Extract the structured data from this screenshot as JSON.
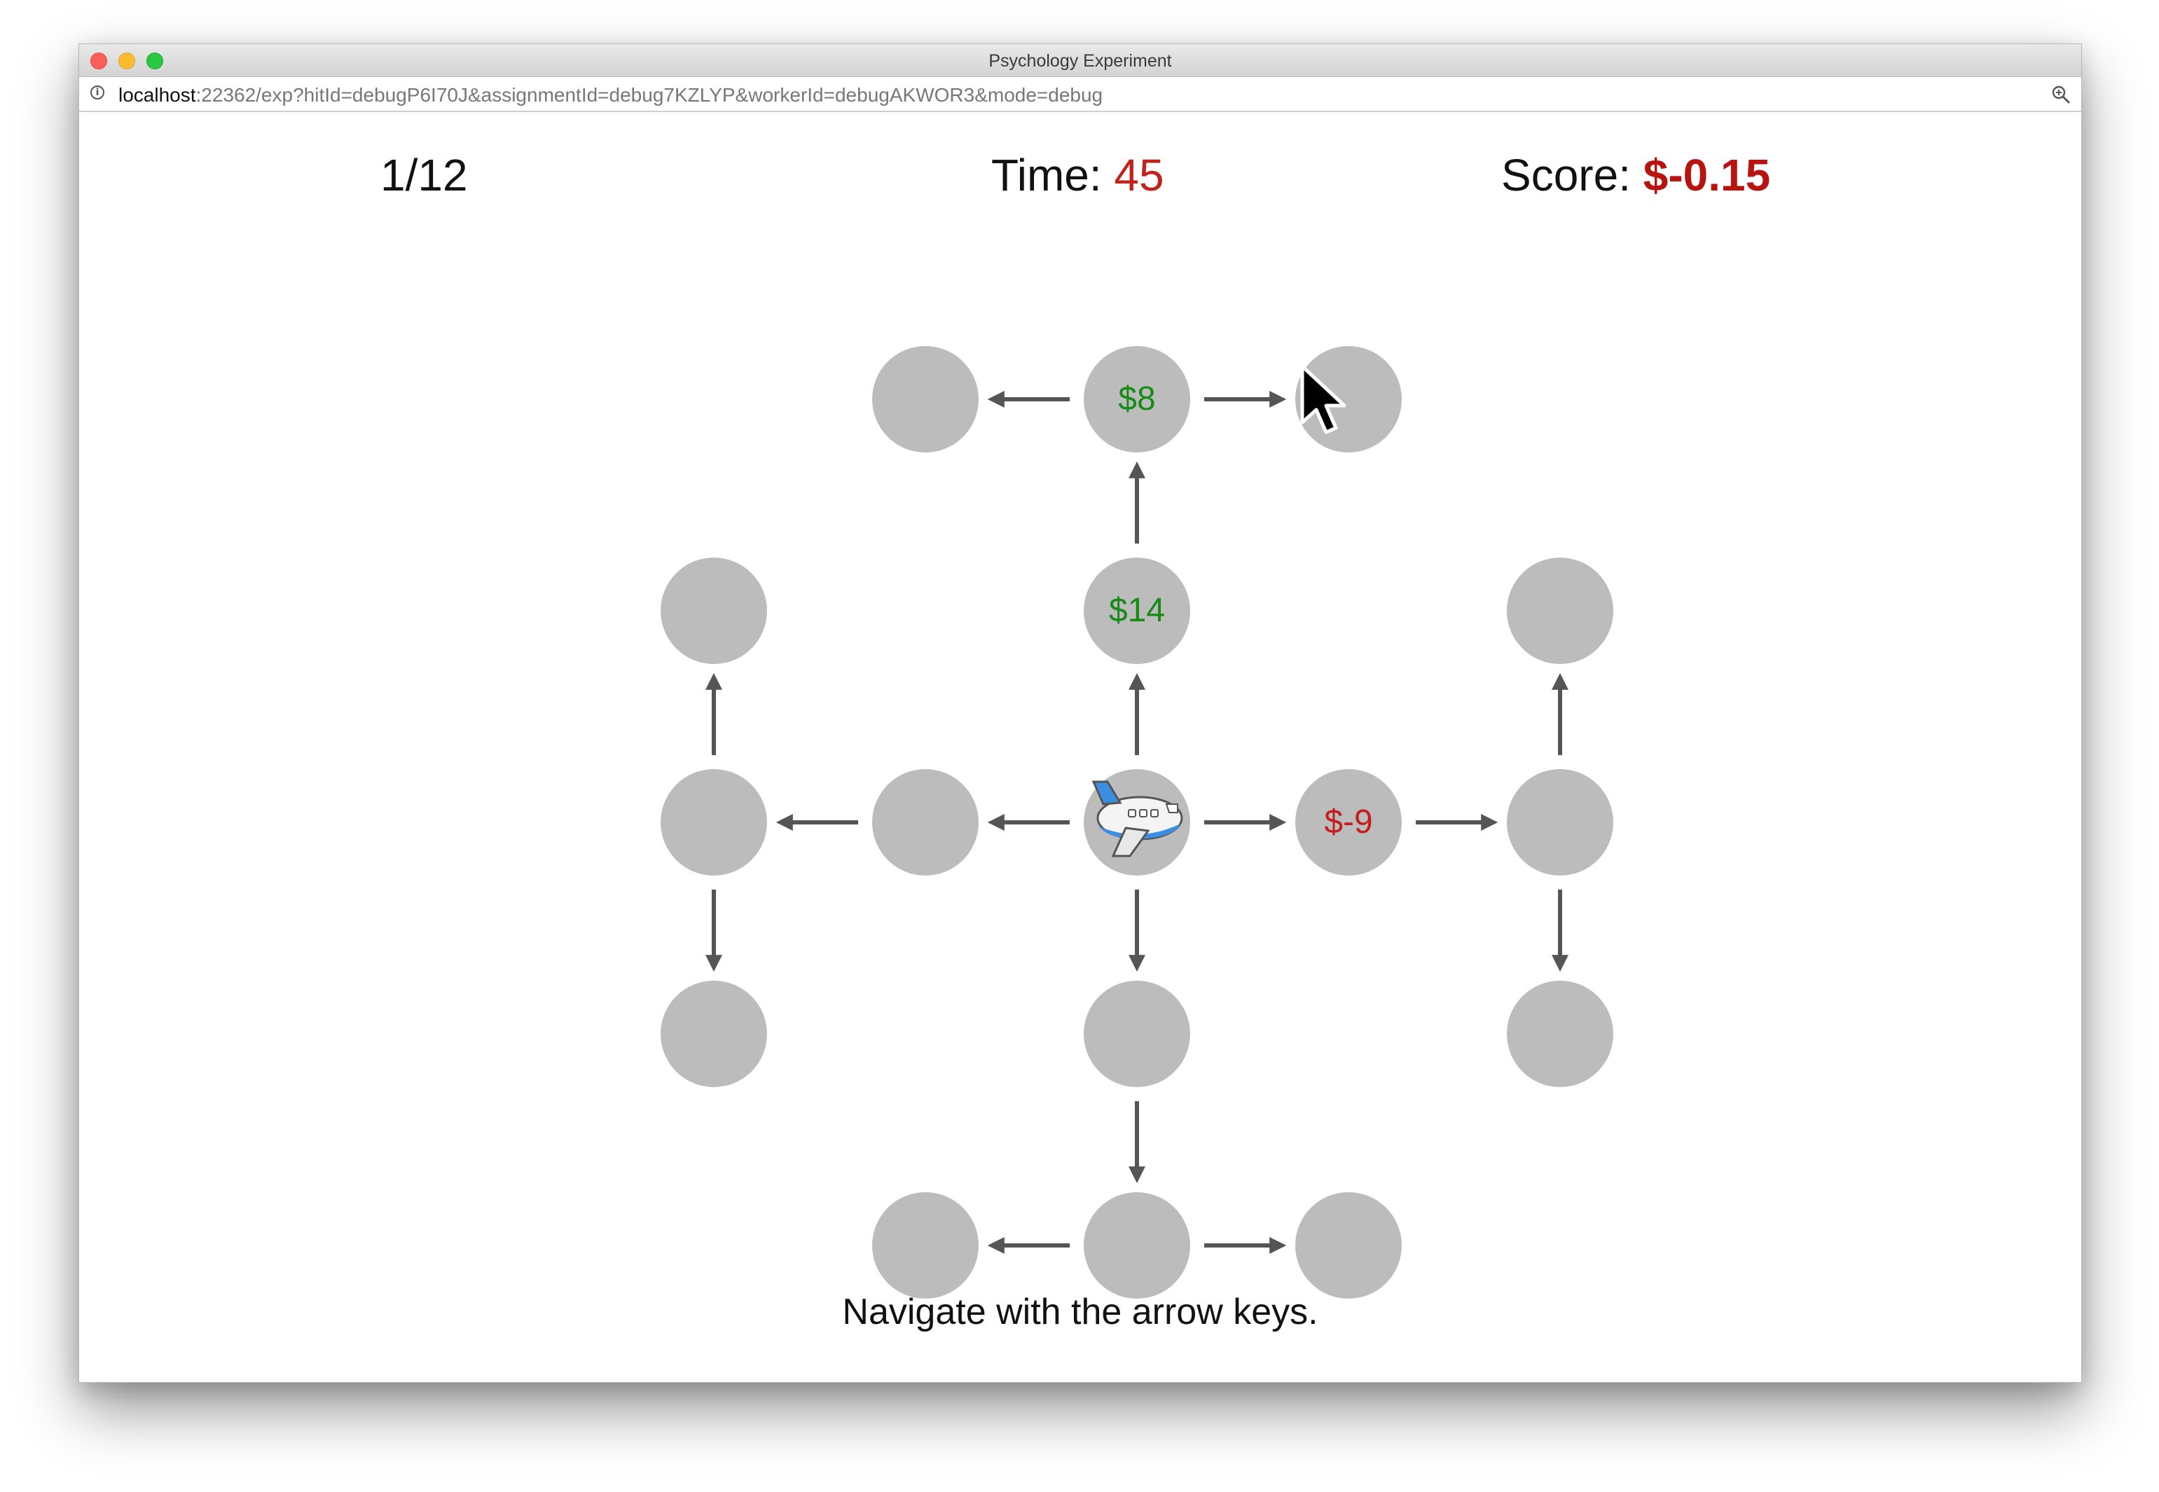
{
  "window": {
    "title": "Psychology Experiment"
  },
  "url": {
    "host": "localhost",
    "path": ":22362/exp?hitId=debugP6I70J&assignmentId=debug7KZLYP&workerId=debugAKWOR3&mode=debug"
  },
  "hud": {
    "trial": "1/12",
    "time_label": "Time: ",
    "time_value": "45",
    "score_label": "Score: ",
    "score_value": "$-0.15"
  },
  "colors": {
    "positive": "#188a18",
    "negative": "#c41d1d",
    "node": "#bcbcbc",
    "arrow": "#555555"
  },
  "grid": {
    "nodes": [
      {
        "id": "n-r0-c1",
        "row": 0,
        "col": 1,
        "label": ""
      },
      {
        "id": "n-r0-c2",
        "row": 0,
        "col": 2,
        "label": "$8"
      },
      {
        "id": "n-r0-c3",
        "row": 0,
        "col": 3,
        "label": ""
      },
      {
        "id": "n-r1-c0",
        "row": 1,
        "col": 0,
        "label": ""
      },
      {
        "id": "n-r1-c2",
        "row": 1,
        "col": 2,
        "label": "$14"
      },
      {
        "id": "n-r1-c4",
        "row": 1,
        "col": 4,
        "label": ""
      },
      {
        "id": "n-r2-c0",
        "row": 2,
        "col": 0,
        "label": ""
      },
      {
        "id": "n-r2-c1",
        "row": 2,
        "col": 1,
        "label": ""
      },
      {
        "id": "n-r2-c2",
        "row": 2,
        "col": 2,
        "label": "",
        "player": true
      },
      {
        "id": "n-r2-c3",
        "row": 2,
        "col": 3,
        "label": "$-9"
      },
      {
        "id": "n-r2-c4",
        "row": 2,
        "col": 4,
        "label": ""
      },
      {
        "id": "n-r3-c0",
        "row": 3,
        "col": 0,
        "label": ""
      },
      {
        "id": "n-r3-c2",
        "row": 3,
        "col": 2,
        "label": ""
      },
      {
        "id": "n-r3-c4",
        "row": 3,
        "col": 4,
        "label": ""
      },
      {
        "id": "n-r4-c1",
        "row": 4,
        "col": 1,
        "label": ""
      },
      {
        "id": "n-r4-c2",
        "row": 4,
        "col": 2,
        "label": ""
      },
      {
        "id": "n-r4-c3",
        "row": 4,
        "col": 3,
        "label": ""
      }
    ],
    "edges": [
      {
        "from": [
          0,
          2
        ],
        "to": [
          0,
          1
        ]
      },
      {
        "from": [
          0,
          2
        ],
        "to": [
          0,
          3
        ]
      },
      {
        "from": [
          1,
          2
        ],
        "to": [
          0,
          2
        ]
      },
      {
        "from": [
          2,
          2
        ],
        "to": [
          1,
          2
        ]
      },
      {
        "from": [
          2,
          2
        ],
        "to": [
          2,
          1
        ]
      },
      {
        "from": [
          2,
          1
        ],
        "to": [
          2,
          0
        ]
      },
      {
        "from": [
          2,
          0
        ],
        "to": [
          1,
          0
        ]
      },
      {
        "from": [
          2,
          0
        ],
        "to": [
          3,
          0
        ]
      },
      {
        "from": [
          2,
          2
        ],
        "to": [
          2,
          3
        ]
      },
      {
        "from": [
          2,
          3
        ],
        "to": [
          2,
          4
        ]
      },
      {
        "from": [
          2,
          4
        ],
        "to": [
          1,
          4
        ]
      },
      {
        "from": [
          2,
          4
        ],
        "to": [
          3,
          4
        ]
      },
      {
        "from": [
          2,
          2
        ],
        "to": [
          3,
          2
        ]
      },
      {
        "from": [
          3,
          2
        ],
        "to": [
          4,
          2
        ]
      },
      {
        "from": [
          4,
          2
        ],
        "to": [
          4,
          1
        ]
      },
      {
        "from": [
          4,
          2
        ],
        "to": [
          4,
          3
        ]
      }
    ]
  },
  "instruction": "Navigate with the arrow keys."
}
